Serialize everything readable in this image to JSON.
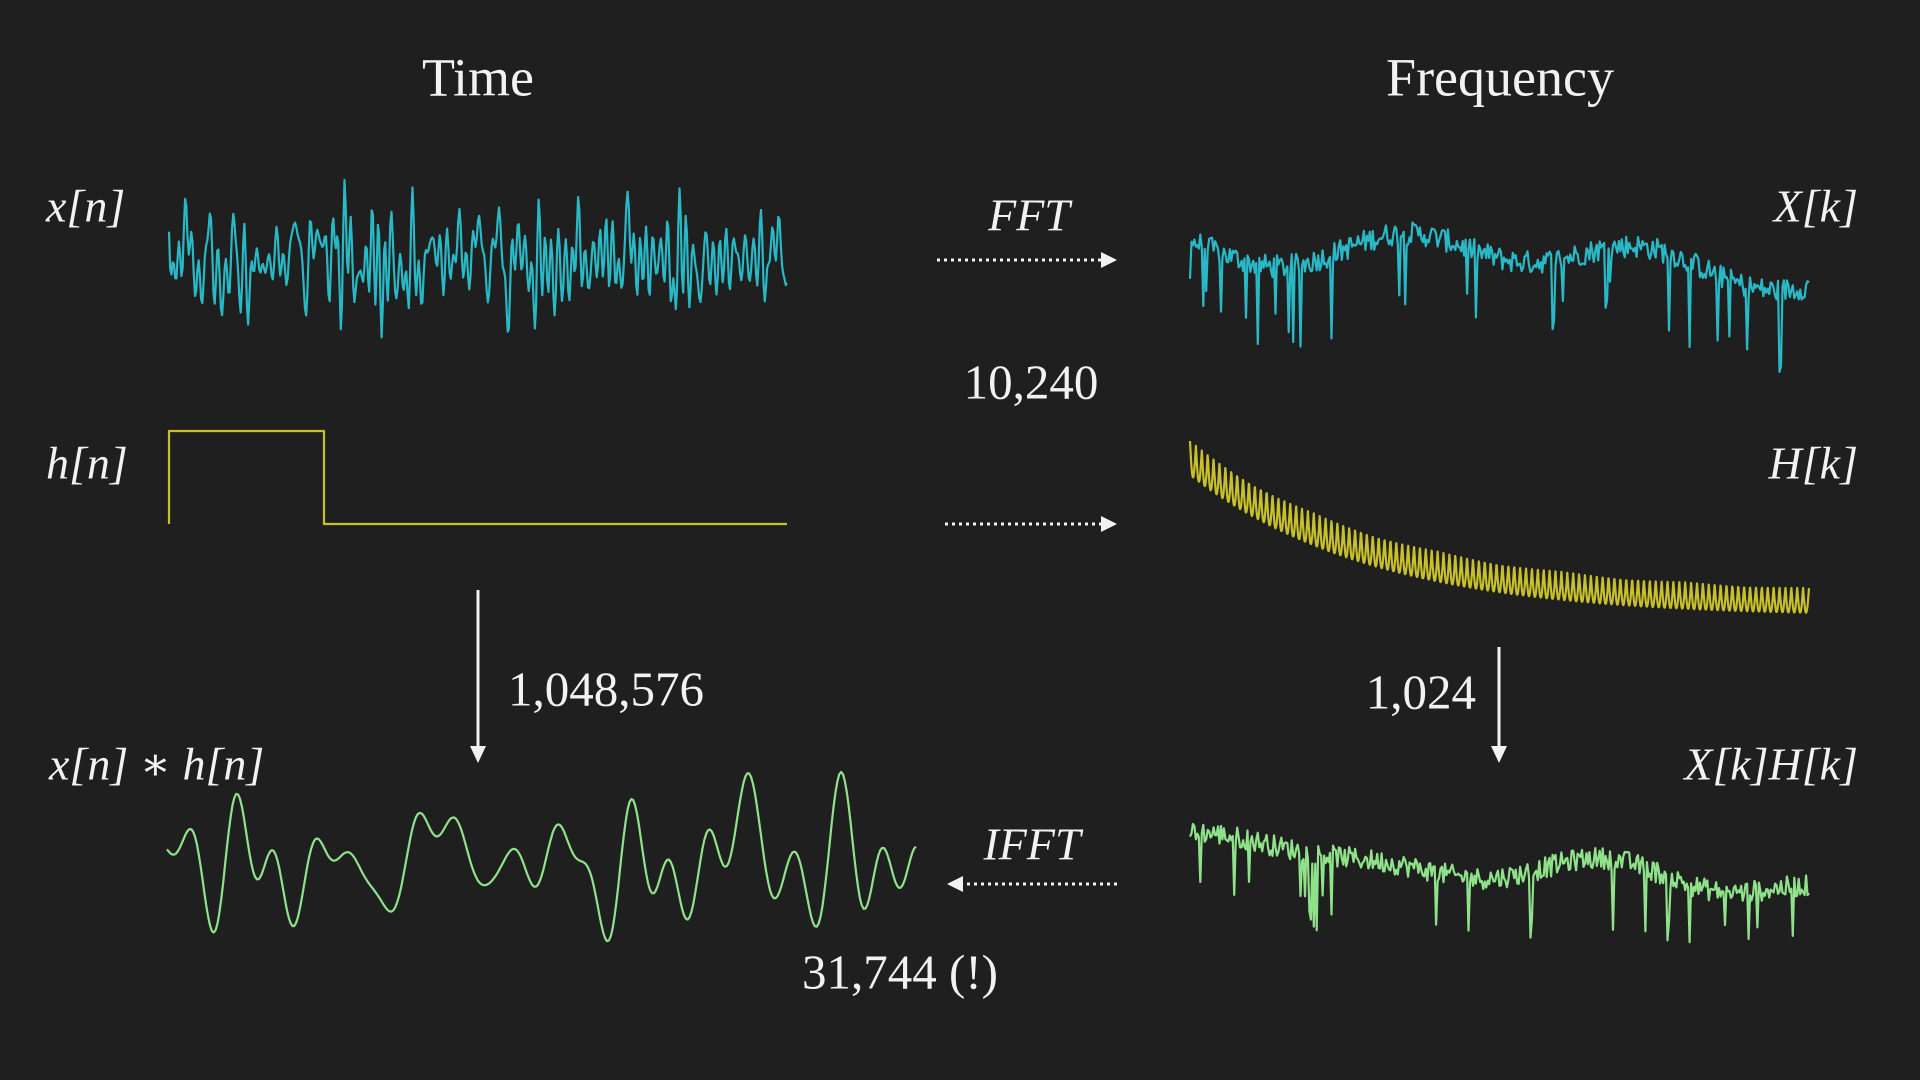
{
  "columns": {
    "time": "Time",
    "frequency": "Frequency"
  },
  "time_signals": [
    "x[n]",
    "h[n]",
    "x[n] ∗ h[n]"
  ],
  "frequency_signals": [
    "X[k]",
    "H[k]",
    "X[k]H[k]"
  ],
  "operations": {
    "forward": "FFT",
    "inverse": "IFFT"
  },
  "costs": {
    "transforms": "10,240",
    "direct_convolution": "1,048,576",
    "pointwise_product": "1,024",
    "total": "31,744 (!)"
  }
}
